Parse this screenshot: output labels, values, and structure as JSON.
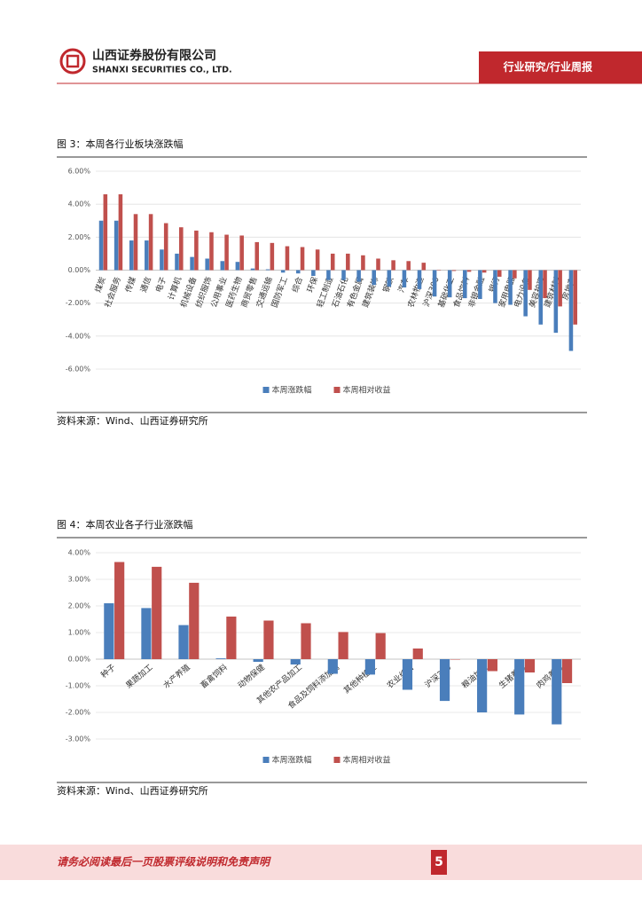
{
  "header": {
    "company": "山西证券股份有限公司",
    "company_en": "SHANXI SECURITIES CO., LTD.",
    "section": "行业研究/行业周报"
  },
  "chart_data": [
    {
      "type": "bar",
      "title": "图 3：本周各行业板块涨跌幅",
      "source": "资料来源：Wind、山西证券研究所",
      "categories": [
        "煤炭",
        "社会服务",
        "传媒",
        "通信",
        "电子",
        "计算机",
        "机械设备",
        "纺织服饰",
        "公用事业",
        "医药生物",
        "商贸零售",
        "交通运输",
        "国防军工",
        "综合",
        "环保",
        "轻工制造",
        "石油石化",
        "有色金属",
        "建筑装饰",
        "钢铁",
        "汽车",
        "农林牧渔",
        "沪深300",
        "基础化工",
        "食品饮料",
        "非银金融",
        "银行",
        "家用电器",
        "电力设备",
        "美容护理",
        "建筑材料",
        "房地产"
      ],
      "series": [
        {
          "name": "本周涨跌幅",
          "color": "#4a7ebb",
          "values": [
            3.0,
            3.0,
            1.8,
            1.8,
            1.25,
            1.0,
            0.8,
            0.7,
            0.55,
            0.5,
            0.1,
            0.05,
            -0.15,
            -0.2,
            -0.35,
            -0.6,
            -0.6,
            -0.7,
            -0.9,
            -1.0,
            -1.05,
            -1.15,
            -1.6,
            -1.65,
            -1.7,
            -1.75,
            -2.0,
            -2.1,
            -2.8,
            -3.3,
            -3.8,
            -4.9
          ]
        },
        {
          "name": "本周相对收益",
          "color": "#c0504d",
          "values": [
            4.6,
            4.6,
            3.4,
            3.4,
            2.85,
            2.6,
            2.4,
            2.3,
            2.15,
            2.1,
            1.7,
            1.65,
            1.45,
            1.4,
            1.25,
            1.0,
            1.0,
            0.9,
            0.7,
            0.6,
            0.55,
            0.45,
            0,
            -0.05,
            -0.1,
            -0.15,
            -0.4,
            -0.5,
            -1.2,
            -1.7,
            -2.2,
            -3.3
          ]
        }
      ],
      "ylim": [
        -6,
        6
      ],
      "yticks": [
        {
          "value": -6,
          "label": "-6.00%"
        },
        {
          "value": -4,
          "label": "-4.00%"
        },
        {
          "value": -2,
          "label": "-2.00%"
        },
        {
          "value": 0,
          "label": "0.00%"
        },
        {
          "value": 2,
          "label": "2.00%"
        },
        {
          "value": 4,
          "label": "4.00%"
        },
        {
          "value": 6,
          "label": "6.00%"
        }
      ],
      "grid": true,
      "legend": "bottom"
    },
    {
      "type": "bar",
      "title": "图 4：本周农业各子行业涨跌幅",
      "source": "资料来源：Wind、山西证券研究所",
      "categories": [
        "种子",
        "果蔬加工",
        "水产养殖",
        "畜禽饲料",
        "动物保健",
        "其他农产品加工",
        "食品及饲料添加剂",
        "其他种植业",
        "农业综合",
        "沪深300",
        "粮油加工",
        "生猪养殖",
        "肉鸡养殖"
      ],
      "series": [
        {
          "name": "本周涨跌幅",
          "color": "#4a7ebb",
          "values": [
            2.1,
            1.92,
            1.28,
            0.03,
            -0.1,
            -0.2,
            -0.55,
            -0.58,
            -1.15,
            -1.57,
            -2.0,
            -2.08,
            -2.45
          ]
        },
        {
          "name": "本周相对收益",
          "color": "#c0504d",
          "values": [
            3.65,
            3.47,
            2.87,
            1.6,
            1.45,
            1.35,
            1.02,
            0.98,
            0.4,
            0,
            -0.45,
            -0.5,
            -0.9
          ]
        }
      ],
      "ylim": [
        -3,
        4
      ],
      "yticks": [
        {
          "value": -3,
          "label": "-3.00%"
        },
        {
          "value": -2,
          "label": "-2.00%"
        },
        {
          "value": -1,
          "label": "-1.00%"
        },
        {
          "value": 0,
          "label": "0.00%"
        },
        {
          "value": 1,
          "label": "1.00%"
        },
        {
          "value": 2,
          "label": "2.00%"
        },
        {
          "value": 3,
          "label": "3.00%"
        },
        {
          "value": 4,
          "label": "4.00%"
        }
      ],
      "grid": true,
      "legend": "bottom"
    }
  ],
  "footer": {
    "notice": "请务必阅读最后一页股票评级说明和免责声明",
    "page": "5"
  }
}
